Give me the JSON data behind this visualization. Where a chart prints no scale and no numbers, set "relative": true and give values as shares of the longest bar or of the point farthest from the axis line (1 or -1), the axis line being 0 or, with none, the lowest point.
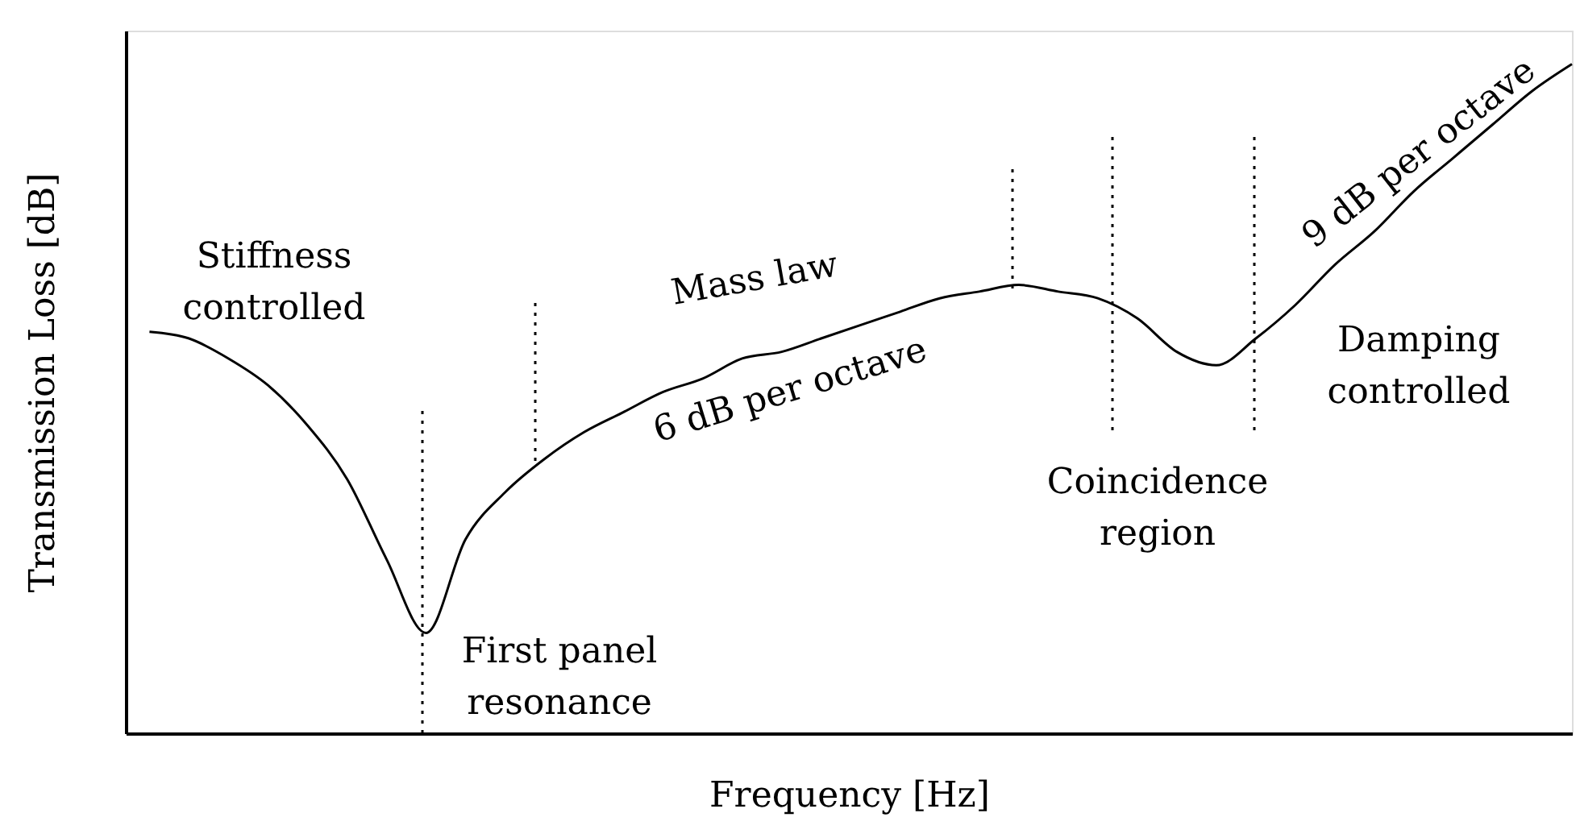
{
  "chart_data": {
    "type": "line",
    "xlabel": "Frequency [Hz]",
    "ylabel": "Transmission Loss [dB]",
    "color": "#000000",
    "relative": true,
    "tick_labels": false,
    "categories": [
      null,
      null,
      null,
      null,
      null,
      null,
      null,
      null,
      null,
      null,
      null,
      null,
      null,
      null,
      null,
      null,
      null,
      null,
      null,
      null,
      null,
      null,
      null,
      null,
      null,
      null,
      null,
      null,
      null,
      null,
      null,
      null,
      null,
      null,
      null,
      null,
      null
    ],
    "values": [
      0.6,
      0.59,
      0.56,
      0.52,
      0.46,
      0.38,
      0.26,
      0.15,
      0.29,
      0.36,
      0.41,
      0.45,
      0.48,
      0.51,
      0.53,
      0.56,
      0.57,
      0.59,
      0.61,
      0.63,
      0.65,
      0.66,
      0.67,
      0.66,
      0.65,
      0.62,
      0.57,
      0.55,
      0.59,
      0.64,
      0.7,
      0.75,
      0.81,
      0.86,
      0.91,
      0.96,
      1.0
    ],
    "annotations": [
      "Stiffness\ncontrolled",
      "Mass law",
      "6 dB per octave",
      "First panel\nresonance",
      "Coincidence\nregion",
      "9 dB per octave",
      "Damping\ncontrolled"
    ]
  }
}
